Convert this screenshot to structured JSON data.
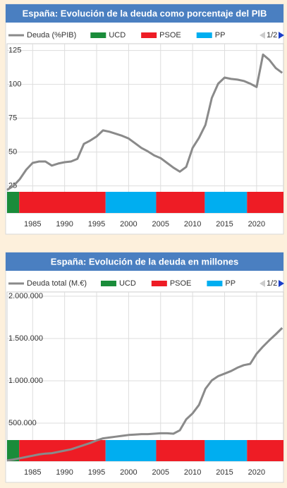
{
  "chart_data": [
    {
      "type": "line",
      "title": "España: Evolución de la deuda como porcentaje del PIB",
      "page_indicator": "1/2",
      "x": [
        1981,
        1982,
        1983,
        1984,
        1985,
        1986,
        1987,
        1988,
        1989,
        1990,
        1991,
        1992,
        1993,
        1994,
        1995,
        1996,
        1997,
        1998,
        1999,
        2000,
        2001,
        2002,
        2003,
        2004,
        2005,
        2006,
        2007,
        2008,
        2009,
        2010,
        2011,
        2012,
        2013,
        2014,
        2015,
        2016,
        2017,
        2018,
        2019,
        2020,
        2021,
        2022,
        2023,
        2024
      ],
      "series": [
        {
          "name": "Deuda (%PIB)",
          "color": "#8a8a8a",
          "values": [
            22,
            25,
            30,
            37,
            42,
            43,
            43,
            40,
            41.5,
            42.5,
            43,
            45,
            56,
            58.5,
            61.5,
            66,
            65,
            63.5,
            62,
            60,
            56.5,
            53,
            50.5,
            47.5,
            45.5,
            42,
            38.5,
            35.5,
            39,
            53,
            60.5,
            70,
            90,
            100.5,
            105,
            104,
            103.5,
            102.5,
            100.5,
            98,
            122,
            118,
            112,
            108.5
          ]
        }
      ],
      "parties": [
        {
          "name": "UCD",
          "color": "#1a8c3a"
        },
        {
          "name": "PSOE",
          "color": "#ee1c25"
        },
        {
          "name": "PP",
          "color": "#00aef0"
        }
      ],
      "governments": [
        {
          "party": 0,
          "start": 1981,
          "end": 1982.9
        },
        {
          "party": 1,
          "start": 1982.9,
          "end": 1996.4
        },
        {
          "party": 2,
          "start": 1996.4,
          "end": 2004.3
        },
        {
          "party": 1,
          "start": 2004.3,
          "end": 2011.9
        },
        {
          "party": 2,
          "start": 2011.9,
          "end": 2018.5
        },
        {
          "party": 1,
          "start": 2018.5,
          "end": 2024.2
        }
      ],
      "xlim": [
        1981,
        2024.2
      ],
      "xticks": [
        1985,
        1990,
        1995,
        2000,
        2005,
        2010,
        2015,
        2020
      ],
      "ylim": [
        5,
        130
      ],
      "yticks": [
        25,
        50,
        75,
        100,
        125
      ],
      "grid": true
    },
    {
      "type": "line",
      "title": "España: Evolución de la deuda en millones",
      "page_indicator": "1/2",
      "x": [
        1981,
        1982,
        1983,
        1984,
        1985,
        1986,
        1987,
        1988,
        1989,
        1990,
        1991,
        1992,
        1993,
        1994,
        1995,
        1996,
        1997,
        1998,
        1999,
        2000,
        2001,
        2002,
        2003,
        2004,
        2005,
        2006,
        2007,
        2008,
        2009,
        2010,
        2011,
        2012,
        2013,
        2014,
        2015,
        2016,
        2017,
        2018,
        2019,
        2020,
        2021,
        2022,
        2023,
        2024
      ],
      "series": [
        {
          "name": "Deuda total (M.€)",
          "color": "#8a8a8a",
          "values": [
            60000,
            70000,
            85000,
            100000,
            115000,
            130000,
            140000,
            145000,
            160000,
            175000,
            190000,
            215000,
            240000,
            265000,
            295000,
            320000,
            330000,
            340000,
            350000,
            360000,
            365000,
            370000,
            370000,
            375000,
            380000,
            380000,
            375000,
            415000,
            545000,
            615000,
            715000,
            905000,
            1005000,
            1055000,
            1085000,
            1115000,
            1155000,
            1185000,
            1200000,
            1320000,
            1405000,
            1480000,
            1550000,
            1625000
          ]
        }
      ],
      "parties": [
        {
          "name": "UCD",
          "color": "#1a8c3a"
        },
        {
          "name": "PSOE",
          "color": "#ee1c25"
        },
        {
          "name": "PP",
          "color": "#00aef0"
        }
      ],
      "governments": [
        {
          "party": 0,
          "start": 1981,
          "end": 1982.9
        },
        {
          "party": 1,
          "start": 1982.9,
          "end": 1996.4
        },
        {
          "party": 2,
          "start": 1996.4,
          "end": 2004.3
        },
        {
          "party": 1,
          "start": 2004.3,
          "end": 2011.9
        },
        {
          "party": 2,
          "start": 2011.9,
          "end": 2018.5
        },
        {
          "party": 1,
          "start": 2018.5,
          "end": 2024.2
        }
      ],
      "xlim": [
        1981,
        2024.2
      ],
      "xticks": [
        1985,
        1990,
        1995,
        2000,
        2005,
        2010,
        2015,
        2020
      ],
      "ylim": [
        50000,
        2050000
      ],
      "yticks": [
        {
          "value": 500000,
          "label": "500.000"
        },
        {
          "value": 1000000,
          "label": "1.000.000"
        },
        {
          "value": 1500000,
          "label": "1.500.000"
        },
        {
          "value": 2000000,
          "label": "2.000.000"
        }
      ],
      "grid": true
    }
  ]
}
